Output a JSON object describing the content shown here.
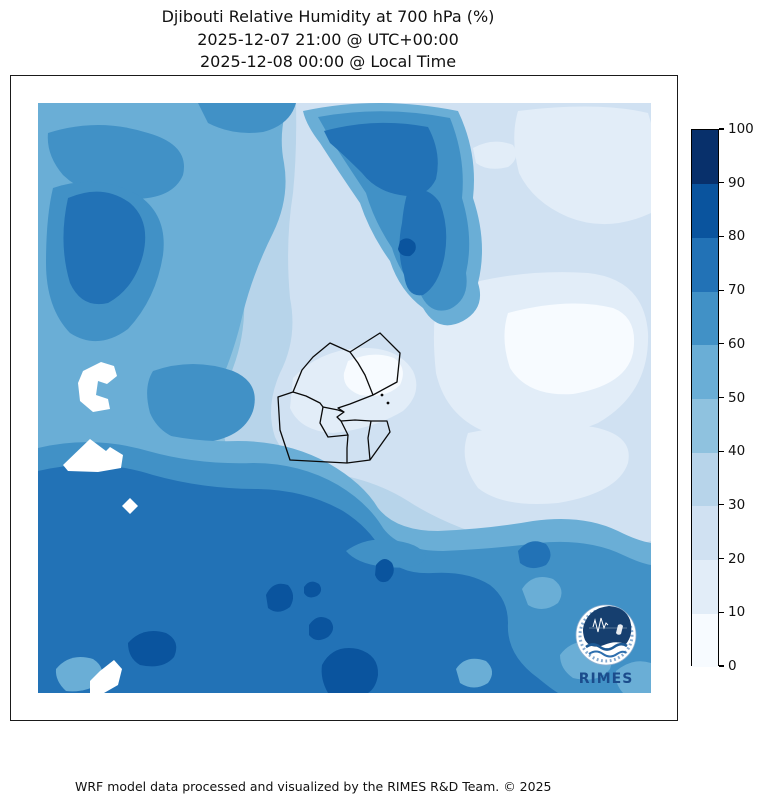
{
  "title": {
    "line1": "Djibouti Relative Humidity at 700 hPa (%)",
    "line2": "2025-12-07 21:00 @ UTC+00:00",
    "line3": "2025-12-08 00:00 @ Local Time"
  },
  "footer": "WRF model data processed and visualized by the RIMES R&D Team. © 2025",
  "logo": {
    "text": "RIMES",
    "text_color": "#1b4c8c"
  },
  "colorbar": {
    "ticks": [
      0,
      10,
      20,
      30,
      40,
      50,
      60,
      70,
      80,
      90,
      100
    ],
    "colors": [
      "#f7fbff",
      "#e2edf8",
      "#d0e1f2",
      "#b7d4ea",
      "#8fc2df",
      "#6aaed6",
      "#4191c6",
      "#2272b6",
      "#0a549e",
      "#08306b"
    ]
  },
  "chart_data": {
    "type": "heatmap",
    "subtype": "filled-contour-map",
    "title": "Djibouti Relative Humidity at 700 hPa (%)",
    "time_utc": "2025-12-07 21:00 @ UTC+00:00",
    "time_local": "2025-12-08 00:00 @ Local Time",
    "units": "%",
    "colormap": "Blues",
    "levels": [
      0,
      10,
      20,
      30,
      40,
      50,
      60,
      70,
      80,
      90,
      100
    ],
    "legend_position": "right-colorbar",
    "grid_note": "approximate RH (%) read from fill colors on an 8x8 grid, rows north to south, columns west to east",
    "grid": [
      [
        55,
        65,
        55,
        75,
        45,
        25,
        25,
        25
      ],
      [
        65,
        75,
        45,
        75,
        55,
        15,
        15,
        15
      ],
      [
        55,
        65,
        35,
        65,
        75,
        15,
        15,
        25
      ],
      [
        65,
        55,
        25,
        15,
        25,
        15,
        5,
        15
      ],
      [
        55,
        65,
        25,
        5,
        25,
        5,
        15,
        35
      ],
      [
        65,
        75,
        55,
        45,
        55,
        65,
        45,
        45
      ],
      [
        75,
        65,
        75,
        85,
        75,
        75,
        65,
        55
      ],
      [
        75,
        85,
        75,
        85,
        75,
        75,
        65,
        65
      ]
    ],
    "overlay": "Djibouti admin boundaries (black outline), white masked patches on west side"
  },
  "map": {
    "layers": [
      {
        "name": "rh-40-50-base",
        "color": "#8fc2df",
        "paths": [
          "M0,0H613V590H0Z"
        ]
      },
      {
        "name": "rh-30-40",
        "color": "#b7d4ea",
        "paths": [
          "M190,0 H613 V480 Q520,500 430,470 Q360,448 330,420 Q300,392 250,390 Q205,388 190,350 Q178,310 195,265 Q210,225 205,180 Q200,120 190,60 Z"
        ]
      },
      {
        "name": "rh-20-30",
        "color": "#d0e1f2",
        "paths": [
          "M258,0 H613 V438 Q540,460 470,440 Q410,424 370,398 Q335,376 290,370 Q252,366 237,334 Q227,304 242,270 Q260,235 252,195 Q247,140 255,90 Q259,50 258,0 Z"
        ]
      },
      {
        "name": "rh-10-20",
        "color": "#e2edf8",
        "paths": [
          "M480,8 Q560,-2 610,10 L613,20 V110 Q570,130 530,114 Q495,99 481,70 Q472,35 480,8 Z",
          "M400,190 Q470,165 550,170 Q606,176 610,230 Q612,290 560,320 Q500,345 450,330 Q408,314 398,270 Q393,225 400,190 Z",
          "M255,275 Q280,248 320,245 Q360,243 375,268 Q385,290 365,308 Q335,326 295,330 Q262,328 252,305 Z",
          "M430,330 Q500,316 555,324 Q596,332 590,360 Q580,390 520,400 Q465,405 440,385 Q420,358 430,330 Z",
          "M435,45 Q455,34 475,42 Q483,55 470,64 Q450,69 438,60 Z"
        ]
      },
      {
        "name": "rh-0-10",
        "color": "#f7fbff",
        "paths": [
          "M470,210 Q530,194 575,205 Q601,215 595,250 Q588,282 535,291 Q490,294 472,265 Q462,235 470,210 Z",
          "M310,258 Q335,247 356,255 Q370,265 362,282 Q348,296 322,292 Q304,285 306,270 Z"
        ]
      },
      {
        "name": "rh-50-60-west",
        "color": "#6aaed6",
        "paths": [
          "M0,0 L250,0 Q240,30 246,60 Q252,95 235,130 Q215,170 205,210 Q196,250 180,285 Q164,316 175,345 Q190,372 230,385 Q256,395 252,420 Q245,448 200,445 Q150,440 100,456 Q50,470 0,452 Z"
        ]
      },
      {
        "name": "rh-60-70-west",
        "color": "#4191c6",
        "paths": [
          "M10,30 Q60,14 110,30 Q152,42 145,72 Q135,96 95,96 Q50,96 25,72 Q8,52 10,30 Z",
          "M15,85 Q60,70 100,92 Q130,112 125,152 Q118,196 90,226 Q60,248 32,230 Q8,205 8,160 Q8,114 15,85 Z",
          "M115,268 Q155,254 195,268 Q223,280 215,308 Q205,336 162,340 Q124,338 112,310 Q105,284 115,268 Z",
          "M160,0 L258,0 Q252,22 225,29 Q195,33 170,20 Z"
        ]
      },
      {
        "name": "rh-70-80-west",
        "color": "#2272b6",
        "paths": [
          "M30,95 Q65,80 92,100 Q113,118 105,152 Q96,186 70,200 Q44,206 32,180 Q20,140 30,95 Z"
        ]
      },
      {
        "name": "cluster-50-60",
        "color": "#6aaed6",
        "paths": [
          "M265,8 Q340,-8 420,8 Q440,50 435,95 Q450,140 440,180 Q448,205 425,218 Q400,231 385,205 Q362,188 352,158 Q332,130 322,100 Q300,68 282,40 Q268,22 265,8 Z"
        ]
      },
      {
        "name": "cluster-60-70",
        "color": "#4191c6",
        "paths": [
          "M280,14 Q345,2 412,15 Q428,55 424,95 Q436,135 428,170 Q432,196 412,206 Q392,213 382,190 Q362,172 354,145 Q336,118 328,90 Q308,60 292,35 Z"
        ]
      },
      {
        "name": "cluster-70-80",
        "color": "#2272b6",
        "paths": [
          "M286,28 Q338,14 390,24 Q404,50 398,76 Q388,97 362,92 Q338,88 324,70 Q306,52 292,40 Z",
          "M370,88 Q390,82 402,100 Q412,126 406,156 Q400,183 385,192 Q369,195 366,172 Q358,148 364,120 Q366,100 370,88 Z"
        ]
      },
      {
        "name": "cluster-80-90",
        "color": "#0a549e",
        "paths": [
          "M362,138 Q370,132 377,140 Q380,148 372,153 Q362,154 360,146 Z"
        ]
      },
      {
        "name": "south-50-60",
        "color": "#6aaed6",
        "paths": [
          "M0,322 Q50,310 100,325 Q150,340 200,338 Q250,338 290,360 Q325,380 340,405 Q358,428 400,428 Q450,426 495,418 Q545,411 580,428 Q600,438 613,440 V590 H0 Z"
        ]
      },
      {
        "name": "south-60-70",
        "color": "#4191c6",
        "paths": [
          "M0,345 Q55,332 110,348 Q160,362 215,360 Q262,360 300,382 Q330,400 345,425 Q362,448 405,448 Q455,446 500,440 Q550,435 585,452 Q602,460 613,462 V590 H0 Z"
        ]
      },
      {
        "name": "south-70-80",
        "color": "#2272b6",
        "paths": [
          "M0,368 Q60,354 115,372 Q165,386 220,386 Q268,387 305,408 Q332,425 345,450 Q360,472 395,470 Q430,468 452,482 Q470,496 470,520 Q468,552 500,575 Q512,585 520,590 H0 Z"
        ]
      },
      {
        "name": "south-60-70-streak",
        "color": "#4191c6",
        "paths": [
          "M308,448 Q330,432 360,438 Q385,442 388,455 Q380,467 350,464 Q320,462 308,448 Z"
        ]
      },
      {
        "name": "south-70-80-spot",
        "color": "#2272b6",
        "paths": [
          "M480,448 Q492,433 508,441 Q517,452 508,462 Q493,469 482,460 Z"
        ]
      },
      {
        "name": "south-50-60-spots",
        "color": "#6aaed6",
        "paths": [
          "M484,486 Q495,469 515,476 Q529,486 520,500 Q505,511 490,502 Z",
          "M522,552 Q535,534 560,540 Q579,548 572,566 Q560,581 535,575 Q522,566 522,552 Z",
          "M578,568 Q595,554 613,560 V590 H585 Q576,580 578,568 Z",
          "M418,566 Q428,551 448,558 Q459,568 450,580 Q436,589 422,580 Z",
          "M18,566 Q32,549 55,556 Q69,565 62,580 Q48,590 28,588 Q17,578 18,566 Z"
        ]
      },
      {
        "name": "south-80-90",
        "color": "#0a549e",
        "paths": [
          "M228,492 Q235,477 250,482 Q259,492 252,504 Q240,513 230,505 Z",
          "M266,484 Q272,475 281,481 Q286,488 279,493 Q270,497 266,490 Z",
          "M271,522 Q280,509 292,517 Q299,526 290,534 Q278,541 271,532 Z",
          "M338,462 Q346,451 354,460 Q359,470 350,478 Q341,482 337,472 Z",
          "M284,562 Q295,541 320,546 Q341,552 340,572 Q338,585 330,590 H290 Q282,576 284,562 Z",
          "M90,540 Q105,523 128,530 Q143,538 136,554 Q125,567 102,562 Q90,555 90,540 Z"
        ]
      },
      {
        "name": "masked-white",
        "color": "#ffffff",
        "paths": [
          "M45,268 L63,259 L76,263 L79,273 L69,281 L60,278 L58,292 L70,296 L72,306 L55,309 L42,298 L40,280 Z",
          "M25,362 L52,336 L68,348 L72,344 L85,352 L83,365 L60,369 L30,368 Z",
          "M92,395 L100,403 L92,411 L84,403 Z",
          "M62,568 L76,557 L84,566 L80,582 L66,590 L52,590 L52,578 Z"
        ]
      }
    ],
    "boundary": {
      "color": "#0a0a0a",
      "width": 1.3,
      "paths": [
        "M292,240 L312,249 L342,230 L362,250 L359,279 L335,292 L312,301 L300,305 L306,309 L299,314 L303,318 L317,317 L333,318 L349,318 L352,329 L332,357 L309,360 L252,357 L242,327 L240,294 L255,289 L264,267 L275,254 Z",
        "M312,249 L320,260 L327,272 L335,292",
        "M255,289 L268,293 L282,300 L285,304",
        "M285,304 L300,307 L306,309",
        "M303,318 L310,332 L290,334 L282,320 L285,304",
        "M310,332 L309,345 L309,360",
        "M333,318 L330,335 L332,357"
      ],
      "dots": [
        [
          344,
          292
        ],
        [
          350,
          300
        ]
      ]
    }
  }
}
